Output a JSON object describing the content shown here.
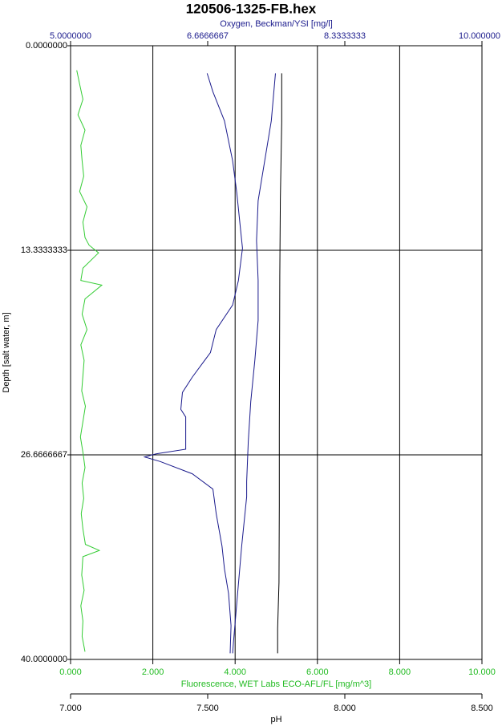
{
  "chart_data": {
    "type": "line",
    "title": "120506-1325-FB.hex",
    "y_label": "Depth [salt water, m]",
    "ylim": [
      0,
      40
    ],
    "yticks": [
      {
        "value": 0,
        "label": "0.0000000"
      },
      {
        "value": 13.3333333,
        "label": "13.3333333"
      },
      {
        "value": 26.6666667,
        "label": "26.6666667"
      },
      {
        "value": 40,
        "label": "40.0000000"
      }
    ],
    "grid": true,
    "axes": [
      {
        "position": "top",
        "label": "Oxygen, Beckman/YSI [mg/l]",
        "color": "#1a1a8c",
        "lim": [
          5,
          10
        ],
        "ticks": [
          {
            "value": 5,
            "label": "5.0000000"
          },
          {
            "value": 6.6666667,
            "label": "6.6666667"
          },
          {
            "value": 8.3333333,
            "label": "8.3333333"
          },
          {
            "value": 10,
            "label": "10.000000"
          }
        ]
      },
      {
        "position": "bottom",
        "label": "Fluorescence, WET Labs ECO-AFL/FL [mg/m^3]",
        "color": "#22bb22",
        "lim": [
          0,
          10
        ],
        "grid": true,
        "ticks": [
          {
            "value": 0,
            "label": "0.000"
          },
          {
            "value": 2,
            "label": "2.000"
          },
          {
            "value": 4,
            "label": "4.000"
          },
          {
            "value": 6,
            "label": "6.000"
          },
          {
            "value": 8,
            "label": "8.000"
          },
          {
            "value": 10,
            "label": "10.000"
          }
        ]
      },
      {
        "position": "bottom2",
        "label": "pH",
        "color": "#000000",
        "lim": [
          7,
          8.5
        ],
        "ticks": [
          {
            "value": 7,
            "label": "7.000"
          },
          {
            "value": 7.5,
            "label": "7.500"
          },
          {
            "value": 8,
            "label": "8.000"
          },
          {
            "value": 8.5,
            "label": "8.500"
          }
        ]
      }
    ],
    "series": [
      {
        "axis": 0,
        "color": "#1a1a8c",
        "depth": [
          1.8,
          3.0,
          4.9,
          7.5,
          9.6,
          12.2,
          13.2,
          15.3,
          16.9,
          18.5,
          20.0,
          21.6,
          22.6,
          23.7,
          24.2,
          26.3,
          26.6,
          26.8,
          27.1,
          27.9,
          28.9,
          30.5,
          32.6,
          34.1,
          35.7,
          37.8,
          39.6
        ],
        "values": [
          6.66,
          6.73,
          6.87,
          6.97,
          7.02,
          7.07,
          7.09,
          7.04,
          6.97,
          6.77,
          6.7,
          6.48,
          6.36,
          6.34,
          6.4,
          6.4,
          6.04,
          5.9,
          6.09,
          6.48,
          6.73,
          6.77,
          6.84,
          6.87,
          6.92,
          6.95,
          6.94
        ]
      },
      {
        "axis": 0,
        "color": "#1a1a8c",
        "depth": [
          1.8,
          4.9,
          7.5,
          10.1,
          12.7,
          15.3,
          17.9,
          20.5,
          23.2,
          25.8,
          28.4,
          29.4,
          32.6,
          35.7,
          38.9,
          39.6
        ],
        "values": [
          7.49,
          7.44,
          7.36,
          7.28,
          7.26,
          7.28,
          7.28,
          7.24,
          7.19,
          7.16,
          7.14,
          7.14,
          7.08,
          7.03,
          6.98,
          6.97
        ]
      },
      {
        "axis": 2,
        "color": "#000000",
        "depth": [
          1.8,
          5,
          10,
          15,
          20,
          25,
          30,
          35,
          38,
          39.6
        ],
        "values": [
          7.77,
          7.77,
          7.765,
          7.763,
          7.762,
          7.761,
          7.761,
          7.76,
          7.755,
          7.755
        ]
      },
      {
        "axis": 1,
        "color": "#33cc33",
        "depth": [
          1.6,
          2.5,
          3.5,
          4.5,
          5.5,
          6.5,
          7.5,
          8.5,
          9.5,
          10.5,
          11.5,
          12.5,
          13.0,
          13.5,
          14.5,
          15.3,
          15.6,
          16.5,
          17.5,
          18.5,
          19.5,
          20.5,
          21.5,
          22.5,
          23.5,
          24.5,
          25.5,
          26.5,
          27.5,
          28.5,
          29.5,
          30.5,
          31.5,
          32.5,
          32.9,
          33.3,
          34.5,
          35.5,
          36.5,
          37.5,
          38.5,
          39.5
        ],
        "values": [
          0.15,
          0.22,
          0.3,
          0.18,
          0.35,
          0.25,
          0.28,
          0.32,
          0.22,
          0.4,
          0.3,
          0.35,
          0.45,
          0.68,
          0.3,
          0.25,
          0.76,
          0.35,
          0.28,
          0.4,
          0.25,
          0.33,
          0.3,
          0.27,
          0.36,
          0.3,
          0.24,
          0.3,
          0.35,
          0.28,
          0.32,
          0.26,
          0.3,
          0.36,
          0.7,
          0.3,
          0.27,
          0.33,
          0.25,
          0.3,
          0.28,
          0.35
        ]
      }
    ]
  }
}
